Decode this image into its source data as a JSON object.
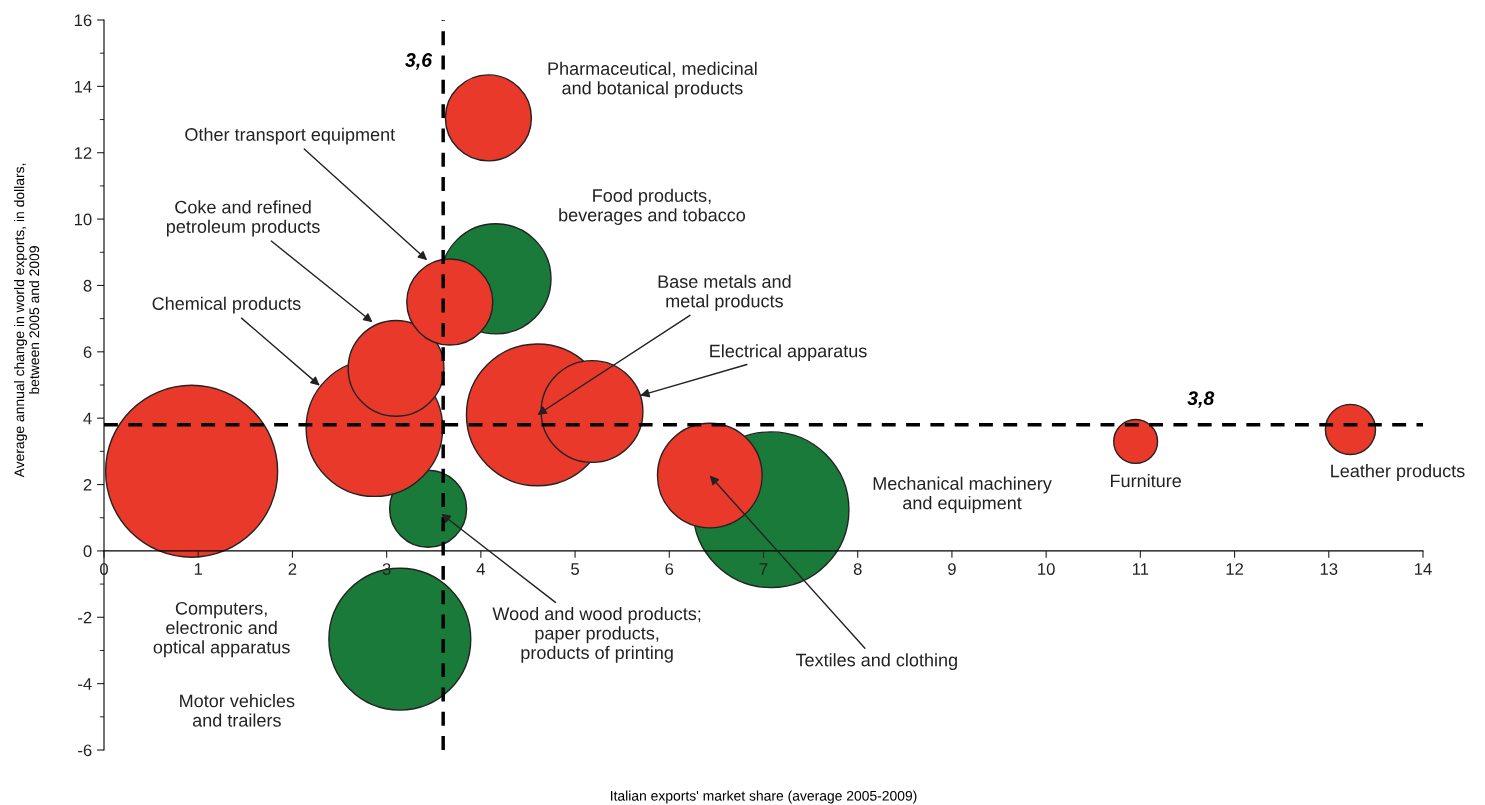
{
  "chart_data": {
    "type": "bubble",
    "xlabel": "Italian exports' market share (average 2005-2009)",
    "ylabel": "Average annual change in world exports, in dollars,\nbetween 2005 and 2009",
    "x": [
      0.93,
      3.44,
      3.14,
      2.87,
      3.1,
      4.16,
      3.67,
      4.08,
      4.6,
      5.18,
      7.08,
      6.43,
      10.95,
      13.23
    ],
    "values": [
      2.4,
      1.27,
      -2.66,
      3.7,
      5.5,
      8.2,
      7.5,
      13.05,
      4.1,
      4.2,
      1.24,
      2.27,
      3.3,
      3.66
    ],
    "sizes": [
      1,
      0.2,
      0.68,
      0.63,
      0.31,
      0.41,
      0.25,
      0.25,
      0.68,
      0.35,
      0.82,
      0.37,
      0.065,
      0.085
    ],
    "colors": [
      "#e8392a",
      "#1a7a3a",
      "#1a7a3a",
      "#e8392a",
      "#e8392a",
      "#1a7a3a",
      "#e8392a",
      "#e8392a",
      "#e8392a",
      "#e8392a",
      "#1a7a3a",
      "#e8392a",
      "#e8392a",
      "#e8392a"
    ],
    "annotations": [
      "Computers,\nelectronic and\noptical apparatus",
      {
        "text": "Wood and wood products;\npaper products,\nproducts of printing",
        "x": 3.58,
        "y": 1.12
      },
      "Motor vehicles\nand trailers",
      {
        "text": "Chemical products",
        "x": 2.29,
        "y": 4.98
      },
      {
        "text": "Coke and refined\npetroleum products",
        "x": 2.85,
        "y": 6.89
      },
      "Food products,\nbeverages and tobacco",
      {
        "text": "Other transport equipment",
        "x": 3.43,
        "y": 8.76
      },
      "Pharmaceutical, medicinal\nand botanical products",
      {
        "text": "Base metals and\nmetal products",
        "x": 4.6,
        "y": 4.1
      },
      {
        "text": "Electrical apparatus",
        "x": 5.69,
        "y": 4.68
      },
      "Mechanical machinery\nand equipment",
      {
        "text": "Textiles and clothing",
        "x": 6.43,
        "y": 2.27
      },
      "Furniture",
      "Leather products"
    ],
    "ref_lines": [
      {
        "axis": "x",
        "value": 3.6,
        "label": "3,6",
        "color": "#000000",
        "line_style": "dashed"
      },
      {
        "axis": "y",
        "value": 3.8,
        "label": "3,8",
        "color": "#000000",
        "line_style": "dashed"
      }
    ],
    "xlim": [
      0,
      14
    ],
    "xticks": [
      0,
      1,
      2,
      3,
      4,
      5,
      6,
      7,
      8,
      9,
      10,
      11,
      12,
      13,
      14
    ],
    "ylim": [
      -6,
      16
    ],
    "yticks": [
      -6,
      -4,
      -2,
      0,
      2,
      4,
      6,
      8,
      10,
      12,
      14,
      16
    ],
    "grid": false
  }
}
